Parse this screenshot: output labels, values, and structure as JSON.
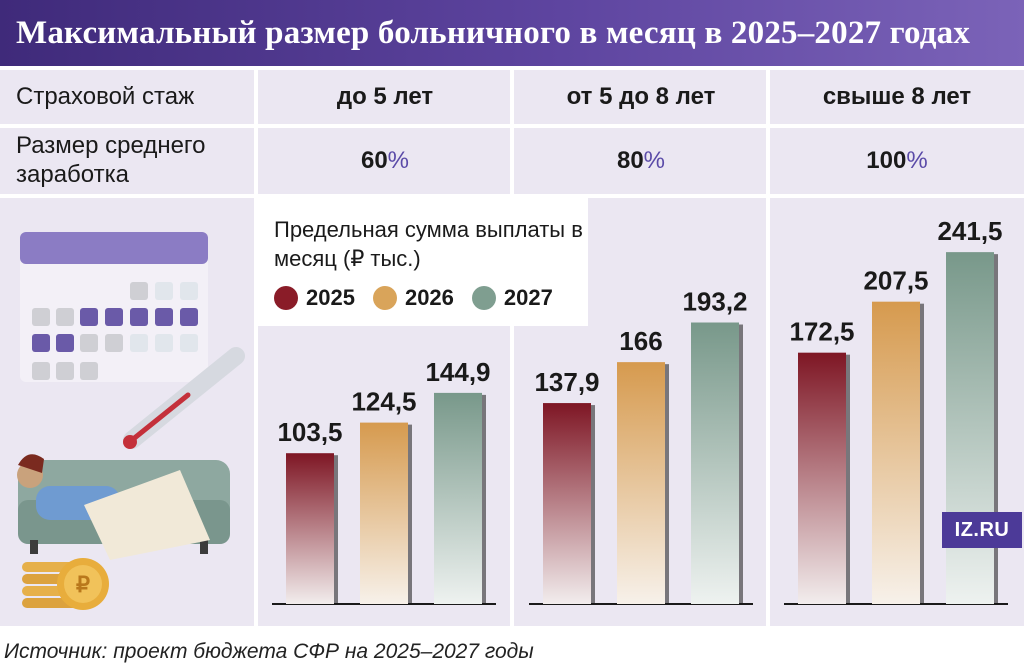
{
  "header": {
    "title": "Максимальный размер больничного в месяц в 2025–2027 годах"
  },
  "table": {
    "row1": {
      "label": "Страховой стаж",
      "values": [
        "до 5 лет",
        "от 5 до 8 лет",
        "свыше 8 лет"
      ]
    },
    "row2": {
      "label": "Размер среднего заработка",
      "values": [
        {
          "number": "60",
          "sign": "%"
        },
        {
          "number": "80",
          "sign": "%"
        },
        {
          "number": "100",
          "sign": "%"
        }
      ]
    }
  },
  "legend": {
    "title": "Предельная сумма выплаты в месяц (₽ тыс.)",
    "items": [
      {
        "label": "2025",
        "color": "#8a1c28"
      },
      {
        "label": "2026",
        "color": "#d9a45a"
      },
      {
        "label": "2027",
        "color": "#7f9e90"
      }
    ]
  },
  "chart_data": {
    "type": "bar",
    "title": "Предельная сумма выплаты в месяц (₽ тыс.)",
    "categories": [
      "до 5 лет",
      "от 5 до 8 лет",
      "свыше 8 лет"
    ],
    "series": [
      {
        "name": "2025",
        "values": [
          103.5,
          137.9,
          172.5
        ],
        "labels": [
          "103,5",
          "137,9",
          "172,5"
        ],
        "color": "#8a1c28"
      },
      {
        "name": "2026",
        "values": [
          124.5,
          166,
          207.5
        ],
        "labels": [
          "124,5",
          "166",
          "207,5"
        ],
        "color": "#d9a45a"
      },
      {
        "name": "2027",
        "values": [
          144.9,
          193.2,
          241.5
        ],
        "labels": [
          "144,9",
          "193,2",
          "241,5"
        ],
        "color": "#7f9e90"
      }
    ],
    "xlabel": "",
    "ylabel": "₽ тыс.",
    "ylim": [
      0,
      260
    ],
    "grid": false,
    "legend": "top-left"
  },
  "logo": {
    "text": "IZ.RU"
  },
  "source": "Источник: проект бюджета СФР на 2025–2027 годы"
}
